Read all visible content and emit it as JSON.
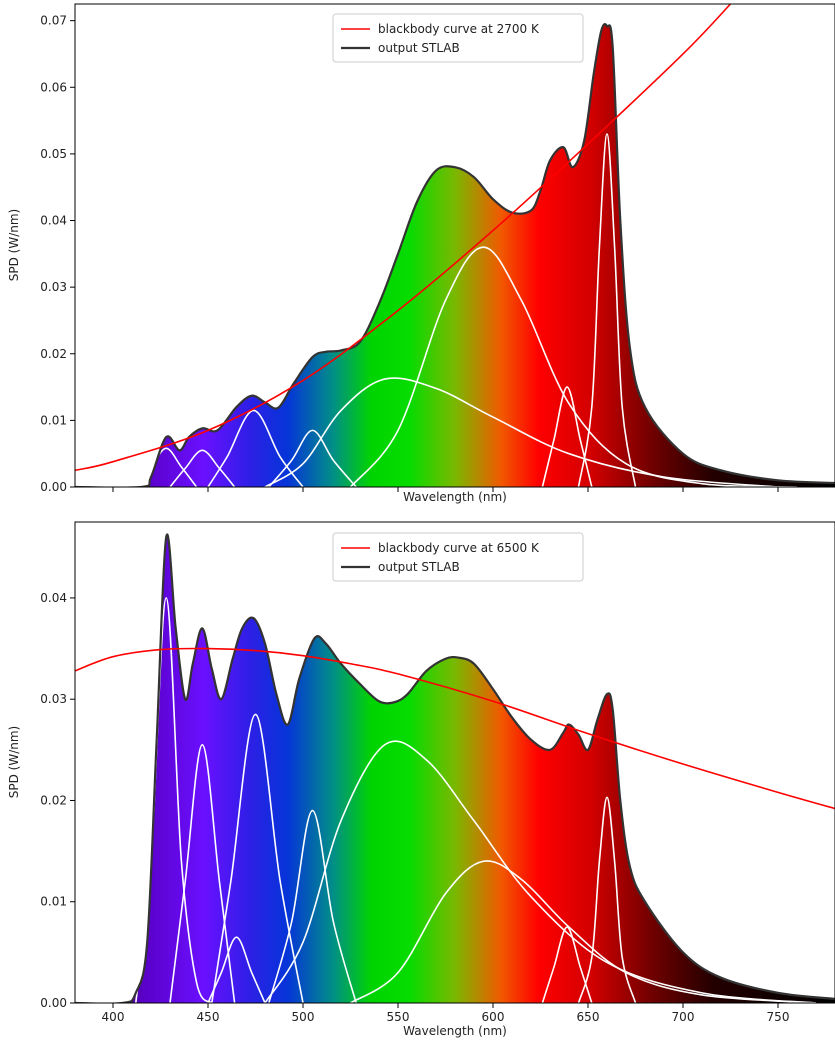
{
  "chart_data": [
    {
      "type": "line",
      "panel": "top",
      "xlabel": "Wavelength (nm)",
      "ylabel": "SPD (W/nm)",
      "xlim": [
        380,
        780
      ],
      "ylim": [
        0,
        0.0725
      ],
      "yticks": [
        0.0,
        0.01,
        0.02,
        0.03,
        0.04,
        0.05,
        0.06,
        0.07
      ],
      "ytick_labels": [
        "0.00",
        "0.01",
        "0.02",
        "0.03",
        "0.04",
        "0.05",
        "0.06",
        "0.07"
      ],
      "xticks": [
        400,
        450,
        500,
        550,
        600,
        650,
        700,
        750
      ],
      "xtick_labels": [],
      "legend_position": "top-center",
      "legend": [
        "blackbody curve at 2700 K",
        "output STLAB"
      ],
      "blackbody": {
        "name": "blackbody curve at 2700 K",
        "color": "#ff0000",
        "x": [
          380,
          400,
          450,
          500,
          550,
          600,
          650,
          700,
          725
        ],
        "y": [
          0.0025,
          0.0038,
          0.0085,
          0.016,
          0.0265,
          0.0385,
          0.0515,
          0.065,
          0.0725
        ]
      },
      "output": {
        "name": "output STLAB",
        "color": "#333333",
        "x": [
          380,
          415,
          420,
          428,
          435,
          440,
          447,
          455,
          465,
          473,
          480,
          487,
          495,
          505,
          512,
          520,
          530,
          540,
          550,
          560,
          570,
          580,
          590,
          600,
          610,
          620,
          625,
          630,
          637,
          642,
          648,
          653,
          657,
          660,
          663,
          667,
          672,
          680,
          700,
          720,
          750,
          780
        ],
        "y": [
          0.0,
          0.0,
          0.0015,
          0.0075,
          0.0055,
          0.0075,
          0.0088,
          0.0085,
          0.012,
          0.0137,
          0.0127,
          0.0119,
          0.0155,
          0.0195,
          0.0203,
          0.0205,
          0.0218,
          0.0275,
          0.035,
          0.0428,
          0.0475,
          0.048,
          0.0465,
          0.0432,
          0.0412,
          0.0415,
          0.0445,
          0.049,
          0.051,
          0.048,
          0.052,
          0.062,
          0.0685,
          0.0692,
          0.066,
          0.04,
          0.021,
          0.012,
          0.005,
          0.0025,
          0.001,
          0.0006
        ]
      },
      "primaries": [
        {
          "x": [
            412,
            420,
            428,
            436,
            444
          ],
          "y": [
            0.0,
            0.003,
            0.0058,
            0.003,
            0.0
          ]
        },
        {
          "x": [
            430,
            438,
            447,
            456,
            464
          ],
          "y": [
            0.0,
            0.0028,
            0.0055,
            0.0028,
            0.0
          ]
        },
        {
          "x": [
            450,
            460,
            474,
            488,
            500
          ],
          "y": [
            0.0,
            0.0045,
            0.0115,
            0.0045,
            0.0
          ]
        },
        {
          "x": [
            482,
            494,
            505,
            516,
            528
          ],
          "y": [
            0.0,
            0.004,
            0.0085,
            0.004,
            0.0
          ]
        },
        {
          "x": [
            480,
            500,
            520,
            543,
            570,
            600,
            640,
            690,
            750
          ],
          "y": [
            0.0,
            0.0035,
            0.0115,
            0.0162,
            0.0148,
            0.0105,
            0.005,
            0.0015,
            0.0
          ]
        },
        {
          "x": [
            525,
            550,
            575,
            595,
            615,
            640,
            670,
            710,
            760
          ],
          "y": [
            0.0,
            0.0085,
            0.028,
            0.036,
            0.028,
            0.0125,
            0.0035,
            0.0005,
            0.0
          ]
        },
        {
          "x": [
            626,
            632,
            639,
            646,
            652
          ],
          "y": [
            0.0,
            0.007,
            0.015,
            0.007,
            0.0
          ]
        },
        {
          "x": [
            645,
            652,
            656,
            660,
            664,
            668,
            675
          ],
          "y": [
            0.0,
            0.012,
            0.036,
            0.053,
            0.036,
            0.012,
            0.0
          ]
        }
      ]
    },
    {
      "type": "line",
      "panel": "bottom",
      "xlabel": "Wavelength (nm)",
      "ylabel": "SPD (W/nm)",
      "xlim": [
        380,
        780
      ],
      "ylim": [
        0,
        0.0475
      ],
      "yticks": [
        0.0,
        0.01,
        0.02,
        0.03,
        0.04
      ],
      "ytick_labels": [
        "0.00",
        "0.01",
        "0.02",
        "0.03",
        "0.04"
      ],
      "xticks": [
        400,
        450,
        500,
        550,
        600,
        650,
        700,
        750
      ],
      "xtick_labels": [
        "400",
        "450",
        "500",
        "550",
        "600",
        "650",
        "700",
        "750"
      ],
      "legend_position": "top-center",
      "legend": [
        "blackbody curve at 6500 K",
        "output STLAB"
      ],
      "blackbody": {
        "name": "blackbody curve at 6500 K",
        "color": "#ff0000",
        "x": [
          380,
          400,
          425,
          450,
          475,
          500,
          525,
          550,
          600,
          650,
          700,
          750,
          780
        ],
        "y": [
          0.0328,
          0.0342,
          0.0349,
          0.035,
          0.0348,
          0.0343,
          0.0335,
          0.0325,
          0.0298,
          0.0266,
          0.0236,
          0.0208,
          0.0192
        ]
      },
      "output": {
        "name": "output STLAB",
        "color": "#333333",
        "x": [
          380,
          405,
          412,
          418,
          423,
          428,
          433,
          438,
          442,
          447,
          452,
          457,
          463,
          468,
          474,
          480,
          486,
          492,
          498,
          506,
          512,
          520,
          530,
          540,
          548,
          555,
          565,
          575,
          582,
          590,
          600,
          610,
          620,
          630,
          637,
          640,
          645,
          650,
          655,
          660,
          663,
          667,
          672,
          680,
          700,
          720,
          750,
          780
        ],
        "y": [
          0.0,
          0.0,
          0.001,
          0.006,
          0.026,
          0.046,
          0.037,
          0.03,
          0.0335,
          0.037,
          0.033,
          0.03,
          0.034,
          0.037,
          0.038,
          0.0355,
          0.0305,
          0.0275,
          0.032,
          0.036,
          0.0355,
          0.0335,
          0.0315,
          0.0298,
          0.0297,
          0.0305,
          0.0328,
          0.034,
          0.0341,
          0.0335,
          0.031,
          0.0282,
          0.026,
          0.025,
          0.0267,
          0.0275,
          0.0265,
          0.025,
          0.028,
          0.0305,
          0.029,
          0.02,
          0.0135,
          0.01,
          0.005,
          0.0025,
          0.001,
          0.0004
        ]
      },
      "primaries": [
        {
          "x": [
            412,
            420,
            428,
            436,
            444,
            452
          ],
          "y": [
            0.0,
            0.014,
            0.04,
            0.014,
            0.002,
            0.0
          ]
        },
        {
          "x": [
            430,
            438,
            447,
            456,
            464
          ],
          "y": [
            0.0,
            0.012,
            0.0255,
            0.012,
            0.0
          ]
        },
        {
          "x": [
            450,
            457,
            465,
            473,
            480
          ],
          "y": [
            0.0,
            0.003,
            0.0065,
            0.003,
            0.0
          ]
        },
        {
          "x": [
            452,
            462,
            475,
            488,
            500
          ],
          "y": [
            0.0,
            0.012,
            0.0285,
            0.012,
            0.0
          ]
        },
        {
          "x": [
            482,
            494,
            505,
            516,
            528
          ],
          "y": [
            0.0,
            0.008,
            0.019,
            0.008,
            0.0
          ]
        },
        {
          "x": [
            480,
            500,
            520,
            543,
            565,
            590,
            620,
            660,
            710,
            770
          ],
          "y": [
            0.0,
            0.006,
            0.018,
            0.0255,
            0.024,
            0.018,
            0.0105,
            0.004,
            0.001,
            0.0
          ]
        },
        {
          "x": [
            525,
            550,
            575,
            595,
            615,
            640,
            670,
            710,
            770
          ],
          "y": [
            0.0,
            0.003,
            0.0108,
            0.014,
            0.0122,
            0.0075,
            0.003,
            0.0008,
            0.0
          ]
        },
        {
          "x": [
            626,
            632,
            639,
            646,
            652
          ],
          "y": [
            0.0,
            0.0035,
            0.0075,
            0.0035,
            0.0
          ]
        },
        {
          "x": [
            645,
            652,
            656,
            660,
            664,
            668,
            675
          ],
          "y": [
            0.0,
            0.0045,
            0.014,
            0.0203,
            0.014,
            0.0045,
            0.0
          ]
        }
      ]
    }
  ]
}
